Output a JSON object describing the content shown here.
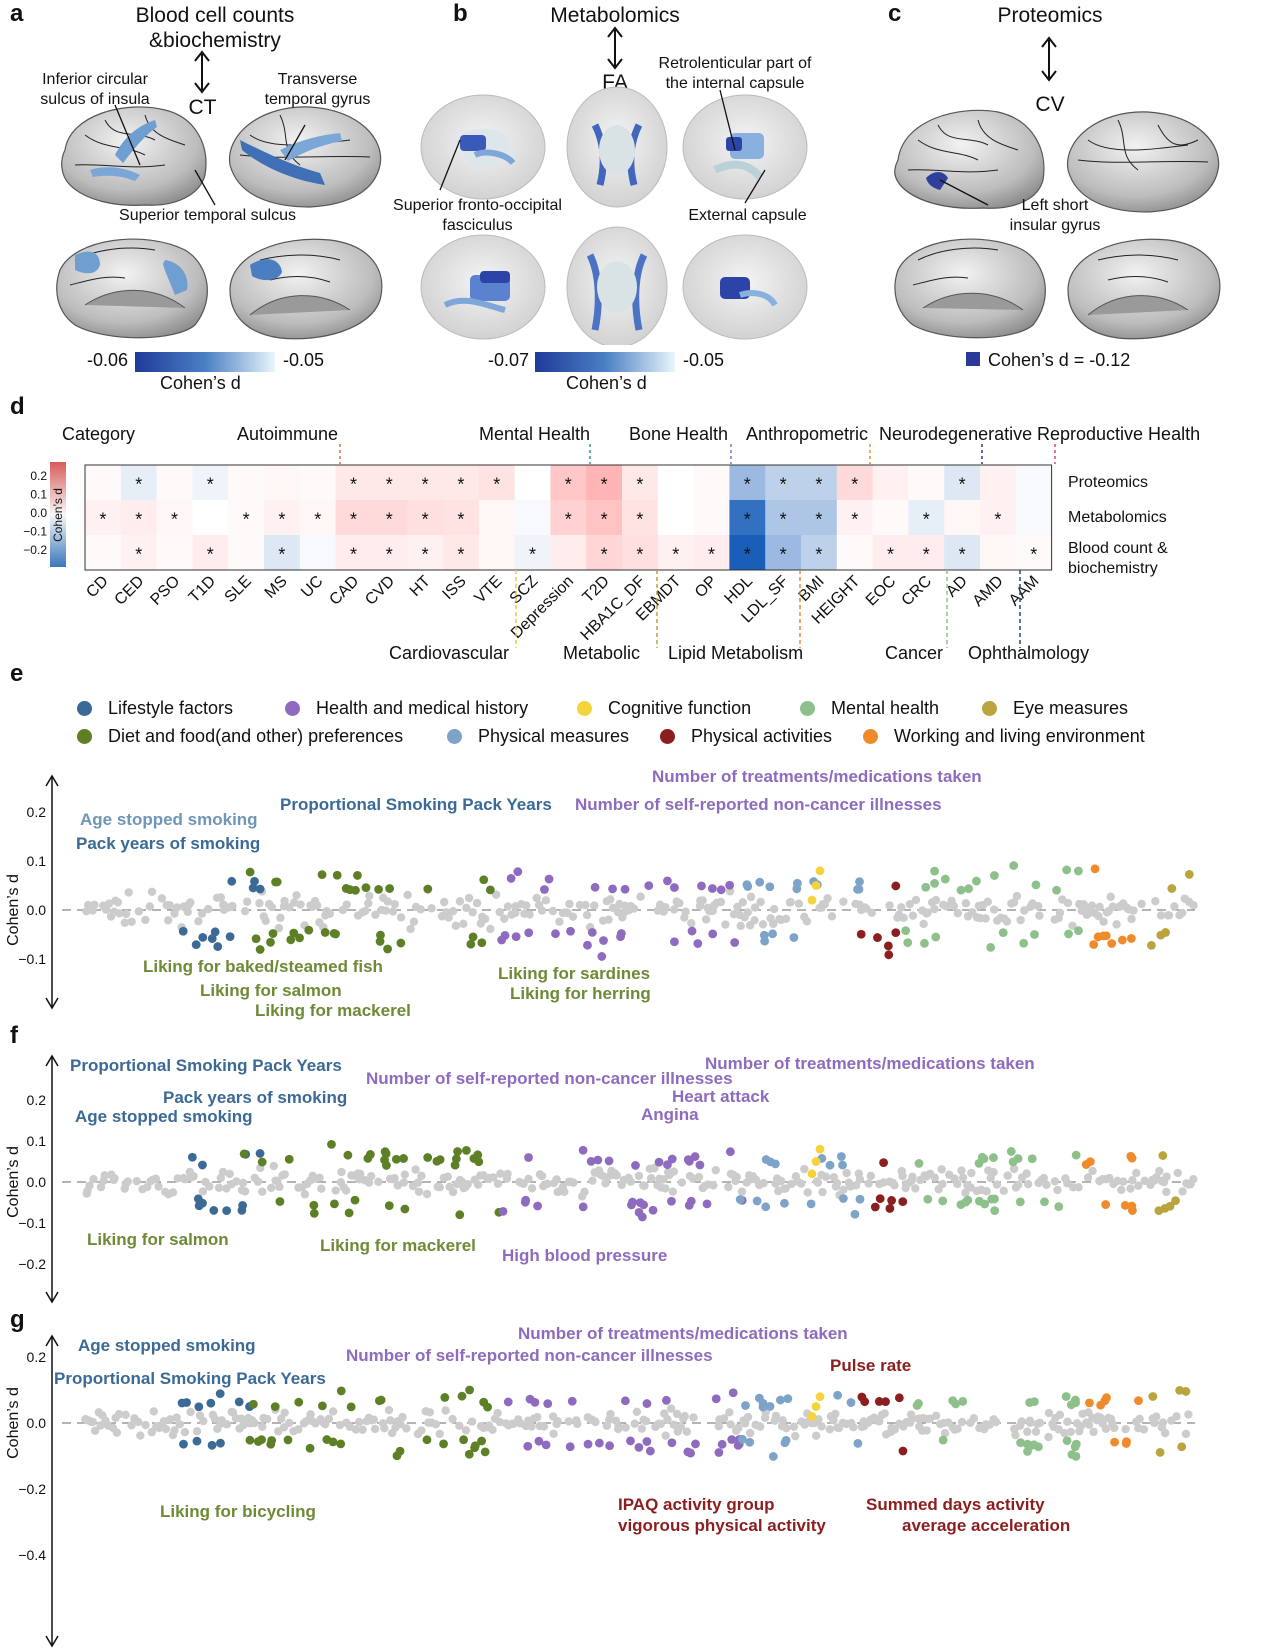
{
  "panel_letters": [
    "a",
    "b",
    "c",
    "d",
    "e",
    "f",
    "g"
  ],
  "panel_a": {
    "title": "Blood cell counts\n&biochemistry",
    "target": "CT",
    "annotations": [
      "Inferior circular\nsulcus of insula",
      "Transverse\ntemporal gyrus",
      "Superior temporal sulcus"
    ],
    "colorbar": {
      "min": "-0.06",
      "max": "-0.05",
      "label": "Cohen’s d"
    }
  },
  "panel_b": {
    "title": "Metabolomics",
    "target": "FA",
    "annotations": [
      "Retrolenticular part of\nthe internal capsule",
      "Superior fronto-occipital\nfasciculus",
      "External capsule"
    ],
    "colorbar": {
      "min": "-0.07",
      "max": "-0.05",
      "label": "Cohen’s d"
    }
  },
  "panel_c": {
    "title": "Proteomics",
    "target": "CV",
    "annotations": [
      "Left short\ninsular gyrus"
    ],
    "legend": "Cohen’s d = -0.12"
  },
  "panel_d": {
    "category_label": "Category",
    "top_categories": [
      "Autoimmune",
      "Mental Health",
      "Bone Health",
      "Anthropometric",
      "Neurodegenerative",
      "Reproductive Health"
    ],
    "bottom_categories": [
      "Cardiovascular",
      "Metabolic",
      "Lipid Metabolism",
      "Cancer",
      "Ophthalmology"
    ],
    "rows": [
      "Proteomics",
      "Metabolomics",
      "Blood count &\nbiochemistry"
    ],
    "columns": [
      "CD",
      "CED",
      "PSO",
      "T1D",
      "SLE",
      "MS",
      "UC",
      "CAD",
      "CVD",
      "HT",
      "ISS",
      "VTE",
      "SCZ",
      "Depression",
      "T2D",
      "HBA1C_DF",
      "EBMDT",
      "OP",
      "HDL",
      "LDL_SF",
      "BMI",
      "HEIGHT",
      "EOC",
      "CRC",
      "AD",
      "AMD",
      "AAM"
    ],
    "colorbar": {
      "ticks": [
        "0.2",
        "0.1",
        "0.0",
        "−0.1",
        "−0.2"
      ],
      "label": "Cohen’s d"
    },
    "chart_data": {
      "type": "heatmap",
      "values": [
        [
          0.01,
          -0.03,
          0.01,
          -0.02,
          0.01,
          0.02,
          0.01,
          0.05,
          0.05,
          0.05,
          0.05,
          0.06,
          0.0,
          0.12,
          0.16,
          0.05,
          0.0,
          0.01,
          -0.12,
          -0.08,
          -0.08,
          0.08,
          0.03,
          0.01,
          -0.04,
          0.03,
          -0.01
        ],
        [
          0.03,
          0.04,
          0.02,
          0.0,
          0.01,
          0.03,
          0.02,
          0.08,
          0.08,
          0.07,
          0.06,
          0.02,
          -0.01,
          0.1,
          0.13,
          0.06,
          0.0,
          0.01,
          -0.25,
          -0.1,
          -0.1,
          0.03,
          0.01,
          -0.03,
          0.02,
          0.03,
          -0.01
        ],
        [
          0.01,
          0.03,
          0.01,
          0.04,
          0.01,
          -0.04,
          -0.01,
          0.04,
          0.04,
          0.03,
          0.05,
          0.02,
          -0.02,
          0.04,
          0.09,
          0.07,
          0.03,
          0.04,
          -0.28,
          -0.12,
          -0.08,
          0.01,
          0.04,
          0.04,
          -0.04,
          0.02,
          0.01
        ]
      ],
      "significant": [
        [
          0,
          1,
          0,
          1,
          0,
          0,
          0,
          1,
          1,
          1,
          1,
          1,
          0,
          1,
          1,
          1,
          0,
          0,
          1,
          1,
          1,
          1,
          0,
          0,
          1,
          0,
          0
        ],
        [
          1,
          1,
          1,
          0,
          1,
          1,
          1,
          1,
          1,
          1,
          1,
          0,
          0,
          1,
          1,
          1,
          0,
          0,
          1,
          1,
          1,
          1,
          0,
          1,
          0,
          1,
          0
        ],
        [
          0,
          1,
          0,
          1,
          0,
          1,
          0,
          1,
          1,
          1,
          1,
          0,
          1,
          0,
          1,
          1,
          1,
          1,
          1,
          1,
          1,
          0,
          1,
          1,
          1,
          0,
          1
        ]
      ]
    }
  },
  "panel_e_legend": [
    {
      "name": "Lifestyle factors",
      "color": "#3b6a96"
    },
    {
      "name": "Health and medical history",
      "color": "#8e6bbf"
    },
    {
      "name": "Cognitive function",
      "color": "#f5d33a"
    },
    {
      "name": "Mental health",
      "color": "#8dc08b"
    },
    {
      "name": "Eye measures",
      "color": "#b9a43d"
    },
    {
      "name": "Diet and food(and other) preferences",
      "color": "#5d7f26"
    },
    {
      "name": "Physical measures",
      "color": "#7da3c8"
    },
    {
      "name": "Physical activities",
      "color": "#8b1f1f"
    },
    {
      "name": "Working and living environment",
      "color": "#ef8b2b"
    }
  ],
  "scatter_panels": [
    {
      "ylabel": "Cohen’s d",
      "ticks": [
        "0.2",
        "0.1",
        "0.0",
        "−0.1"
      ],
      "chart_data": {
        "type": "scatter",
        "ylim": [
          -0.18,
          0.28
        ]
      },
      "labels": [
        {
          "text": "Age stopped smoking",
          "color": "#6f95b8"
        },
        {
          "text": "Pack years of smoking",
          "color": "#3b6a96"
        },
        {
          "text": "Proportional Smoking Pack Years",
          "color": "#3b6a96"
        },
        {
          "text": "Number of treatments/medications taken",
          "color": "#8e6bbf"
        },
        {
          "text": "Number of self-reported non-cancer illnesses",
          "color": "#8e6bbf"
        },
        {
          "text": "Liking for baked/steamed fish",
          "color": "#6e8a36"
        },
        {
          "text": "Liking for salmon",
          "color": "#6e8a36"
        },
        {
          "text": "Liking for mackerel",
          "color": "#6e8a36"
        },
        {
          "text": "Liking for sardines",
          "color": "#6e8a36"
        },
        {
          "text": "Liking for herring",
          "color": "#6e8a36"
        }
      ]
    },
    {
      "ylabel": "Cohen’s d",
      "ticks": [
        "0.2",
        "0.1",
        "0.0",
        "−0.1",
        "−0.2"
      ],
      "chart_data": {
        "type": "scatter",
        "ylim": [
          -0.27,
          0.3
        ]
      },
      "labels": [
        {
          "text": "Proportional Smoking Pack Years",
          "color": "#3b6a96"
        },
        {
          "text": "Pack years of smoking",
          "color": "#3b6a96"
        },
        {
          "text": "Age stopped smoking",
          "color": "#3b6a96"
        },
        {
          "text": "Number of self-reported non-cancer illnesses",
          "color": "#8e6bbf"
        },
        {
          "text": "Number of treatments/medications taken",
          "color": "#8e6bbf"
        },
        {
          "text": "Heart attack",
          "color": "#8e6bbf"
        },
        {
          "text": "Angina",
          "color": "#8e6bbf"
        },
        {
          "text": "High blood pressure",
          "color": "#8e6bbf"
        },
        {
          "text": "Liking for salmon",
          "color": "#6e8a36"
        },
        {
          "text": "Liking for mackerel",
          "color": "#6e8a36"
        }
      ]
    },
    {
      "ylabel": "Cohen’s d",
      "ticks": [
        "0.2",
        "0.0",
        "−0.2",
        "−0.4"
      ],
      "chart_data": {
        "type": "scatter",
        "ylim": [
          -0.41,
          0.27
        ]
      },
      "labels": [
        {
          "text": "Age stopped smoking",
          "color": "#3b6a96"
        },
        {
          "text": "Proportional Smoking Pack Years",
          "color": "#3b6a96"
        },
        {
          "text": "Number of treatments/medications taken",
          "color": "#8e6bbf"
        },
        {
          "text": "Number of self-reported non-cancer illnesses",
          "color": "#8e6bbf"
        },
        {
          "text": "Pulse rate",
          "color": "#8b1f1f"
        },
        {
          "text": "Liking for bicycling",
          "color": "#6e8a36"
        },
        {
          "text": "IPAQ activity group",
          "color": "#8b1f1f"
        },
        {
          "text": "vigorous physical activity",
          "color": "#8b1f1f"
        },
        {
          "text": "Summed days activity",
          "color": "#8b1f1f"
        },
        {
          "text": "average acceleration",
          "color": "#8b1f1f"
        }
      ]
    }
  ]
}
